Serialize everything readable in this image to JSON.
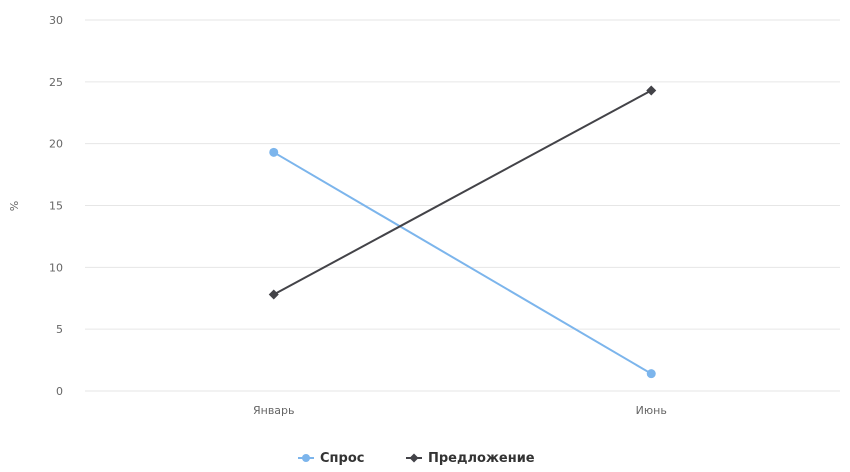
{
  "chart_data": {
    "type": "line",
    "categories": [
      "Январь",
      "Июнь"
    ],
    "ylabel": "%",
    "ylim": [
      0,
      30
    ],
    "yticks": [
      0,
      5,
      10,
      15,
      20,
      25,
      30
    ],
    "grid": true,
    "legend": "bottom",
    "series": [
      {
        "name": "Спрос",
        "values": [
          19.3,
          1.4
        ],
        "color": "#7cb5ec",
        "marker": "circle"
      },
      {
        "name": "Предложение",
        "values": [
          7.8,
          24.3
        ],
        "color": "#434348",
        "marker": "diamond"
      }
    ]
  }
}
